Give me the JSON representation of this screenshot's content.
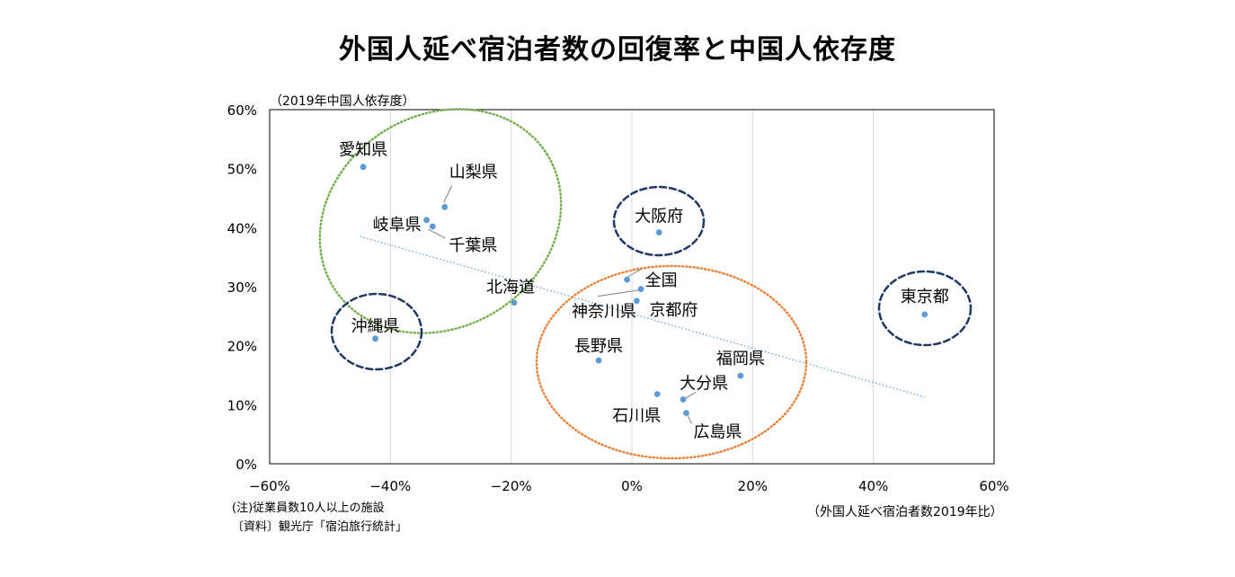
{
  "chart_data": {
    "type": "scatter",
    "title": "外国人延べ宿泊者数の回復率と中国人依存度",
    "xlabel": "（外国人延べ宿泊者数2019年比）",
    "ylabel": "（2019年中国人依存度）",
    "xlim": [
      -60,
      60
    ],
    "ylim": [
      0,
      60
    ],
    "x_ticks": [
      "−60%",
      "−40%",
      "−20%",
      "0%",
      "20%",
      "40%",
      "60%"
    ],
    "y_ticks": [
      "0%",
      "10%",
      "20%",
      "30%",
      "40%",
      "50%",
      "60%"
    ],
    "grid": "vertical",
    "points": [
      {
        "label": "愛知県",
        "x": -44.5,
        "y": 50.3
      },
      {
        "label": "山梨県",
        "x": -31.0,
        "y": 43.5
      },
      {
        "label": "岐阜県",
        "x": -34.0,
        "y": 41.3
      },
      {
        "label": "千葉県",
        "x": -33.0,
        "y": 40.2
      },
      {
        "label": "北海道",
        "x": -19.5,
        "y": 27.3
      },
      {
        "label": "沖縄県",
        "x": -42.5,
        "y": 21.2
      },
      {
        "label": "大阪府",
        "x": 4.5,
        "y": 39.2
      },
      {
        "label": "全国",
        "x": -0.8,
        "y": 31.2
      },
      {
        "label": "神奈川県",
        "x": 1.5,
        "y": 29.6
      },
      {
        "label": "京都府",
        "x": 0.8,
        "y": 27.6
      },
      {
        "label": "長野県",
        "x": -5.5,
        "y": 17.5
      },
      {
        "label": "福岡県",
        "x": 18.0,
        "y": 14.9
      },
      {
        "label": "大分県",
        "x": 8.5,
        "y": 10.9
      },
      {
        "label": "石川県",
        "x": 4.2,
        "y": 11.8
      },
      {
        "label": "広島県",
        "x": 9.0,
        "y": 8.6
      },
      {
        "label": "東京都",
        "x": 48.5,
        "y": 25.3
      }
    ],
    "trendline": {
      "x": [
        -45,
        48.5
      ],
      "y": [
        38.5,
        11.3
      ]
    },
    "groups": [
      {
        "color": "#70ad47",
        "style": "dotted"
      },
      {
        "color": "#ed7d31",
        "style": "dotted"
      },
      {
        "color": "#1f3864",
        "style": "dashed"
      }
    ]
  },
  "notes": {
    "note1": "(注)従業員数10人以上の施設",
    "note2": "〔資料〕観光庁「宿泊旅行統計」"
  },
  "colors": {
    "point": "#5b9bd5",
    "trend": "#5b9bd5",
    "grid": "#d9d9d9"
  }
}
